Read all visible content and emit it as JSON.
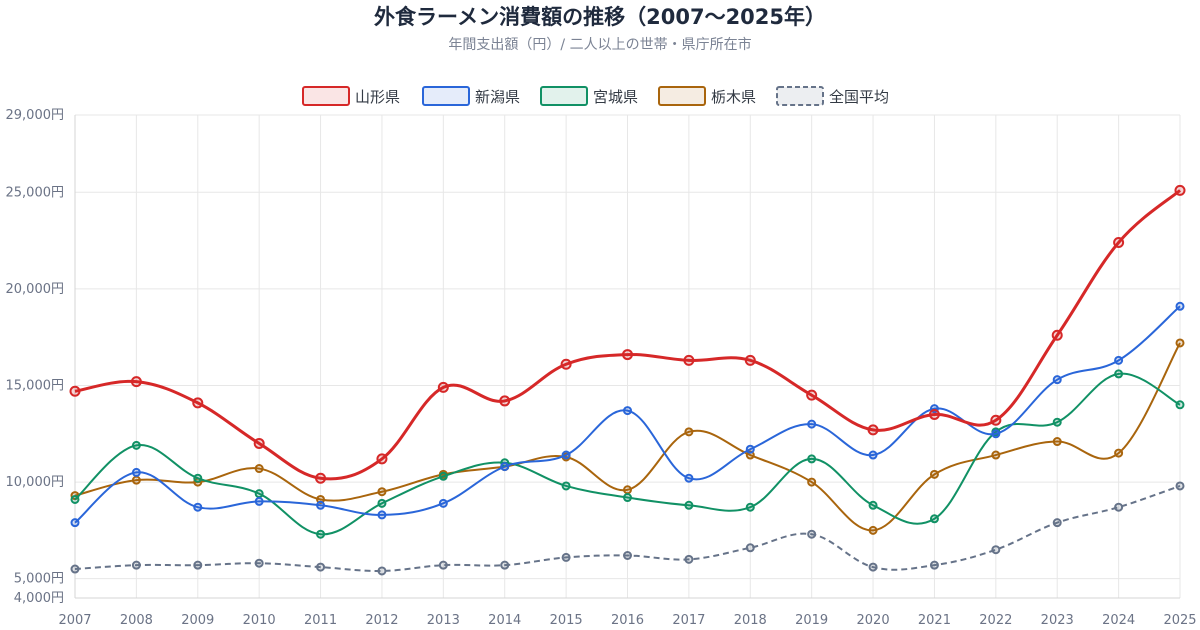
{
  "chart_data": {
    "type": "line",
    "title": "外食ラーメン消費額の推移（2007〜2025年）",
    "subtitle": "年間支出額（円）/ 二人以上の世帯・県庁所在市",
    "xlabel": "",
    "ylabel": "",
    "ylim": [
      4000,
      29000
    ],
    "y_ticks": [
      4000,
      5000,
      10000,
      15000,
      20000,
      25000,
      29000
    ],
    "y_tick_labels": [
      "4,000円",
      "5,000円",
      "10,000円",
      "15,000円",
      "20,000円",
      "25,000円",
      "29,000円"
    ],
    "categories": [
      "2007",
      "2008",
      "2009",
      "2010",
      "2011",
      "2012",
      "2013",
      "2014",
      "2015",
      "2016",
      "2017",
      "2018",
      "2019",
      "2020",
      "2021",
      "2022",
      "2023",
      "2024",
      "2025"
    ],
    "grid": true,
    "legend_position": "top",
    "series": [
      {
        "name": "山形県",
        "color": "#d62828",
        "dashed": false,
        "values": [
          14700,
          15200,
          14100,
          12000,
          10200,
          11200,
          14900,
          14200,
          16100,
          16600,
          16300,
          16300,
          14500,
          12700,
          13500,
          13200,
          17600,
          22400,
          25100
        ]
      },
      {
        "name": "新潟県",
        "color": "#2a66d9",
        "dashed": false,
        "values": [
          7900,
          10500,
          8700,
          9000,
          8800,
          8300,
          8900,
          10800,
          11400,
          13700,
          10200,
          11700,
          13000,
          11400,
          13800,
          12500,
          15300,
          16300,
          19100
        ]
      },
      {
        "name": "宮城県",
        "color": "#119165",
        "dashed": false,
        "values": [
          9100,
          11900,
          10200,
          9400,
          7300,
          8900,
          10300,
          11000,
          9800,
          9200,
          8800,
          8700,
          11200,
          8800,
          8100,
          12600,
          13100,
          15600,
          14000
        ]
      },
      {
        "name": "栃木県",
        "color": "#a9650d",
        "dashed": false,
        "values": [
          9300,
          10100,
          10000,
          10700,
          9100,
          9500,
          10400,
          10800,
          11300,
          9600,
          12600,
          11400,
          10000,
          7500,
          10400,
          11400,
          12100,
          11500,
          17200
        ]
      },
      {
        "name": "全国平均",
        "color": "#667389",
        "dashed": true,
        "values": [
          5500,
          5700,
          5700,
          5800,
          5600,
          5400,
          5700,
          5700,
          6100,
          6200,
          6000,
          6600,
          7300,
          5600,
          5700,
          6500,
          7900,
          8700,
          9800
        ]
      }
    ]
  }
}
